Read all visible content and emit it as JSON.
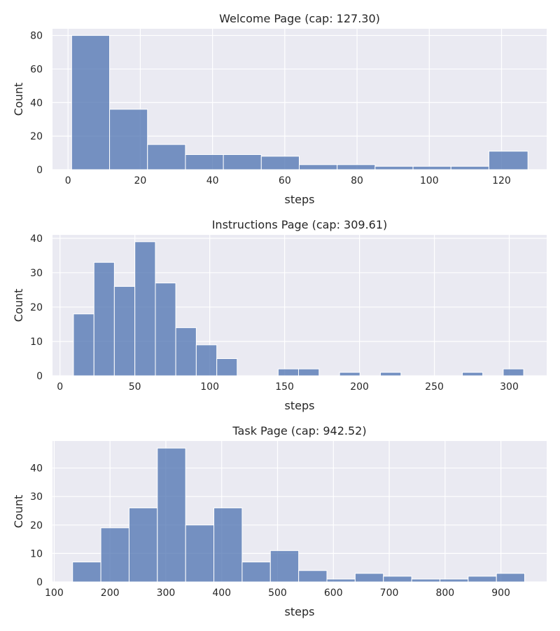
{
  "chart_data": [
    {
      "type": "bar",
      "title": "Welcome Page (cap: 127.30)",
      "xlabel": "steps",
      "ylabel": "Count",
      "xlim": [
        -4.3,
        132.5
      ],
      "ylim": [
        0,
        84
      ],
      "xticks": [
        0,
        20,
        40,
        60,
        80,
        100,
        120
      ],
      "yticks": [
        0,
        20,
        40,
        60,
        80
      ],
      "grid": true,
      "bin_edges": [
        1.0,
        11.5,
        22.0,
        32.5,
        43.0,
        53.5,
        64.0,
        74.5,
        85.0,
        95.5,
        106.0,
        116.5,
        127.3
      ],
      "counts": [
        80,
        36,
        15,
        9,
        9,
        8,
        3,
        3,
        2,
        2,
        2,
        11
      ]
    },
    {
      "type": "bar",
      "title": "Instructions Page (cap: 309.61)",
      "xlabel": "steps",
      "ylabel": "Count",
      "xlim": [
        -5,
        325
      ],
      "ylim": [
        0,
        41
      ],
      "xticks": [
        0,
        50,
        100,
        150,
        200,
        250,
        300
      ],
      "yticks": [
        0,
        10,
        20,
        30,
        40
      ],
      "grid": true,
      "bin_edges": [
        9.0,
        22.7,
        36.3,
        50.0,
        63.7,
        77.3,
        91.0,
        104.7,
        118.3,
        132.0,
        145.7,
        159.3,
        173.0,
        186.7,
        200.3,
        214.0,
        227.7,
        241.3,
        255.0,
        268.7,
        282.3,
        296.0,
        309.6
      ],
      "counts": [
        18,
        33,
        26,
        39,
        27,
        14,
        9,
        5,
        0,
        0,
        2,
        2,
        0,
        1,
        0,
        1,
        0,
        0,
        0,
        1,
        0,
        2
      ]
    },
    {
      "type": "bar",
      "title": "Task Page (cap: 942.52)",
      "xlabel": "steps",
      "ylabel": "Count",
      "xlim": [
        97,
        982
      ],
      "ylim": [
        0,
        49.5
      ],
      "xticks": [
        100,
        200,
        300,
        400,
        500,
        600,
        700,
        800,
        900
      ],
      "yticks": [
        0,
        10,
        20,
        30,
        40
      ],
      "grid": true,
      "bin_edges": [
        133.0,
        183.6,
        234.2,
        284.8,
        335.4,
        386.0,
        436.6,
        487.2,
        537.8,
        588.4,
        639.0,
        689.6,
        740.2,
        790.8,
        841.4,
        892.0,
        942.5
      ],
      "counts": [
        7,
        19,
        26,
        47,
        20,
        26,
        7,
        11,
        4,
        1,
        3,
        2,
        1,
        1,
        2,
        3
      ]
    }
  ]
}
